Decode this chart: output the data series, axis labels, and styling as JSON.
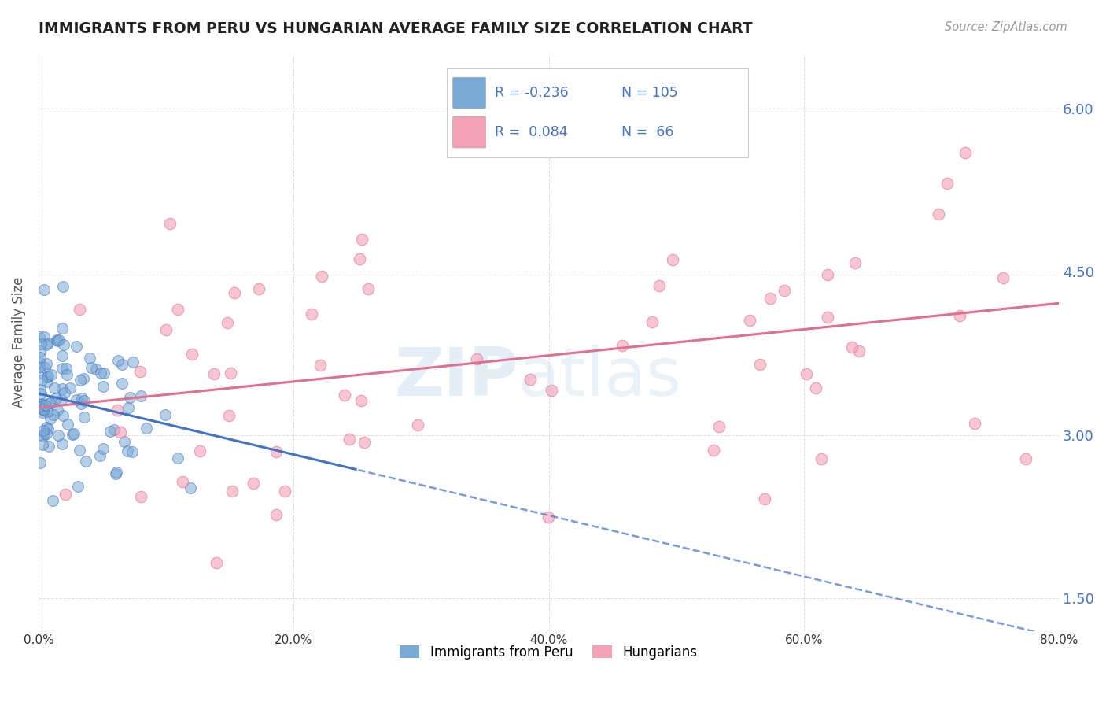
{
  "title": "IMMIGRANTS FROM PERU VS HUNGARIAN AVERAGE FAMILY SIZE CORRELATION CHART",
  "source": "Source: ZipAtlas.com",
  "ylabel": "Average Family Size",
  "yticks": [
    1.5,
    3.0,
    4.5,
    6.0
  ],
  "ytick_labels": [
    "1.50",
    "3.00",
    "4.50",
    "6.00"
  ],
  "xlim": [
    0.0,
    80.0
  ],
  "ylim": [
    1.2,
    6.5
  ],
  "blue_R": -0.236,
  "blue_N": 105,
  "pink_R": 0.084,
  "pink_N": 66,
  "blue_color": "#7aabd4",
  "blue_line_color": "#4472c4",
  "pink_color": "#f4a0b5",
  "pink_line_color": "#e07090",
  "legend_label_blue": "Immigrants from Peru",
  "legend_label_pink": "Hungarians",
  "background_color": "#ffffff",
  "grid_color": "#cccccc",
  "title_color": "#222222",
  "axis_label_color": "#555555",
  "stat_color": "#4472c4",
  "watermark_zip": "ZIP",
  "watermark_atlas": "atlas",
  "seed_blue": 42,
  "seed_pink": 123,
  "blue_solid_end": 25.0,
  "blue_dashed_start": 25.0,
  "blue_intercept": 3.38,
  "blue_slope": -0.028,
  "pink_intercept": 3.25,
  "pink_slope": 0.012
}
